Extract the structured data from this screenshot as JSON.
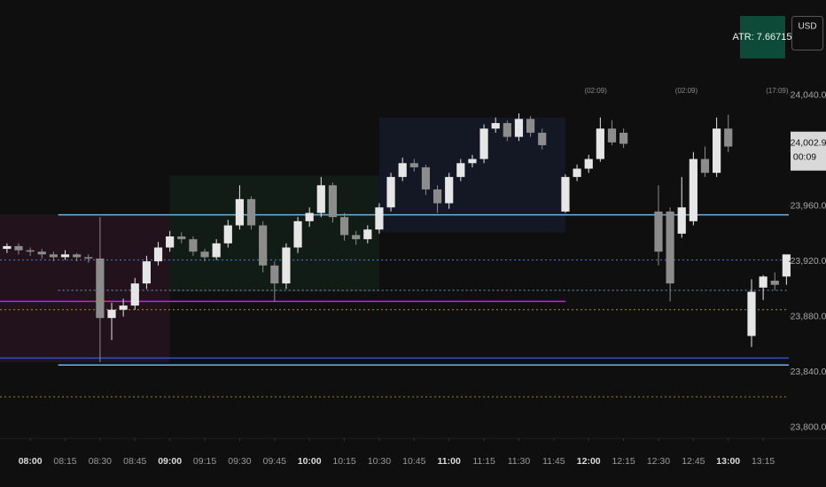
{
  "chart_data": {
    "type": "candlestick",
    "x": [
      "07:50",
      "07:55",
      "08:00",
      "08:05",
      "08:10",
      "08:15",
      "08:20",
      "08:25",
      "08:30",
      "08:35",
      "08:40",
      "08:45",
      "08:50",
      "08:55",
      "09:00",
      "09:05",
      "09:10",
      "09:15",
      "09:20",
      "09:25",
      "09:30",
      "09:35",
      "09:40",
      "09:45",
      "09:50",
      "09:55",
      "10:00",
      "10:05",
      "10:10",
      "10:15",
      "10:20",
      "10:25",
      "10:30",
      "10:35",
      "10:40",
      "10:45",
      "10:50",
      "10:55",
      "11:00",
      "11:05",
      "11:10",
      "11:15",
      "11:20",
      "11:25",
      "11:30",
      "11:35",
      "11:40",
      "11:50",
      "11:55",
      "12:00",
      "12:05",
      "12:10",
      "12:15",
      "12:30",
      "12:35",
      "12:40",
      "12:45",
      "12:50",
      "12:55",
      "13:00",
      "13:10",
      "13:15",
      "13:20",
      "13:25"
    ],
    "open": [
      23929,
      23931,
      23928,
      23927,
      23925,
      23923,
      23925,
      23923,
      23922,
      23879,
      23885,
      23888,
      23904,
      23920,
      23930,
      23938,
      23936,
      23927,
      23923,
      23933,
      23946,
      23965,
      23946,
      23917,
      23904,
      23930,
      23949,
      23955,
      23975,
      23952,
      23939,
      23936,
      23943,
      23959,
      23981,
      23991,
      23988,
      23972,
      23962,
      23981,
      23991,
      23994,
      24016,
      24020,
      24010,
      24023,
      24013,
      23956,
      23981,
      23987,
      23994,
      24016,
      24013,
      23956,
      23956,
      23940,
      23949,
      23994,
      23984,
      24016,
      23866,
      23901,
      23906,
      23909
    ],
    "high": [
      23933,
      23933,
      23930,
      23929,
      23927,
      23928,
      23926,
      23925,
      23952,
      23890,
      23893,
      23908,
      23924,
      23934,
      23942,
      23941,
      23938,
      23929,
      23936,
      23950,
      23975,
      23967,
      23949,
      23920,
      23933,
      23952,
      23959,
      23981,
      23977,
      23955,
      23942,
      23946,
      23962,
      23984,
      23995,
      23994,
      23990,
      23975,
      23984,
      23994,
      23997,
      24019,
      24024,
      24022,
      24027,
      24025,
      24016,
      23983,
      23990,
      23997,
      24024,
      24022,
      24016,
      23975,
      23959,
      23981,
      23999,
      24003,
      24024,
      24026,
      23907,
      23910,
      23912,
      23924
    ],
    "low": [
      23926,
      23925,
      23924,
      23922,
      23920,
      23921,
      23920,
      23919,
      23847,
      23863,
      23880,
      23885,
      23900,
      23917,
      23927,
      23933,
      23924,
      23920,
      23921,
      23930,
      23943,
      23943,
      23912,
      23891,
      23900,
      23926,
      23945,
      23952,
      23948,
      23935,
      23932,
      23933,
      23940,
      23956,
      23978,
      23985,
      23968,
      23955,
      23958,
      23978,
      23988,
      23991,
      24013,
      24007,
      24007,
      24010,
      24001,
      23955,
      23978,
      23984,
      23992,
      24004,
      24002,
      23917,
      23891,
      23937,
      23946,
      23981,
      23981,
      23999,
      23858,
      23892,
      23899,
      23903
    ],
    "close": [
      23931,
      23928,
      23927,
      23925,
      23923,
      23925,
      23923,
      23922,
      23879,
      23885,
      23888,
      23904,
      23920,
      23930,
      23938,
      23936,
      23927,
      23923,
      23933,
      23946,
      23965,
      23946,
      23917,
      23904,
      23930,
      23949,
      23955,
      23975,
      23952,
      23939,
      23936,
      23943,
      23959,
      23981,
      23991,
      23988,
      23972,
      23962,
      23981,
      23991,
      23994,
      24016,
      24020,
      24010,
      24023,
      24013,
      24004,
      23981,
      23987,
      23994,
      24016,
      24006,
      24005,
      23927,
      23904,
      23959,
      23994,
      23984,
      24016,
      24003,
      23898,
      23909,
      23903,
      23925
    ],
    "up_color": "#e6e6e6",
    "down_color": "#8c8c8c",
    "xlim": [
      "07:47",
      "13:26"
    ],
    "xticks": [
      "08:00",
      "08:15",
      "08:30",
      "08:45",
      "09:00",
      "09:15",
      "09:30",
      "09:45",
      "10:00",
      "10:15",
      "10:30",
      "10:45",
      "11:00",
      "11:15",
      "11:30",
      "11:45",
      "12:00",
      "12:15",
      "12:30",
      "12:45",
      "13:00",
      "13:15"
    ],
    "ylim": [
      23792,
      24109
    ],
    "yticks": [
      {
        "value": 23800,
        "label": "23,800.0"
      },
      {
        "value": 23840,
        "label": "23,840.0"
      },
      {
        "value": 23880,
        "label": "23,880.0"
      },
      {
        "value": 23920,
        "label": "23,920.0"
      },
      {
        "value": 23960,
        "label": "23,960.0"
      },
      {
        "value": 24000,
        "label": "24,000.0"
      },
      {
        "value": 24040,
        "label": "24,040.0"
      }
    ],
    "sessions": [
      {
        "start": "07:47",
        "end": "09:00",
        "low": 23847,
        "high": 23954,
        "color": "rgba(130,40,100,0.16)"
      },
      {
        "start": "09:00",
        "end": "10:30",
        "low": 23898,
        "high": 23982,
        "color": "rgba(40,110,80,0.14)"
      },
      {
        "start": "10:30",
        "end": "11:50",
        "low": 23941,
        "high": 24024,
        "color": "rgba(50,70,150,0.16)"
      }
    ],
    "levels": [
      {
        "value": 23953.6,
        "color": "#64b5f0",
        "style": "solid",
        "start": "08:12"
      },
      {
        "value": 23921,
        "color": "#4a7fd8",
        "style": "dotted"
      },
      {
        "value": 23899,
        "color": "#7f95b5",
        "style": "dotted",
        "start": "08:12"
      },
      {
        "value": 23891,
        "color": "#d21fd2",
        "style": "solid",
        "end": "11:50"
      },
      {
        "value": 23885,
        "color": "#b08f2c",
        "style": "dotted"
      },
      {
        "value": 23850,
        "color": "#3050d0",
        "style": "solid"
      },
      {
        "value": 23845,
        "color": "#64b5f0",
        "style": "solid",
        "start": "08:12"
      },
      {
        "value": 23822,
        "color": "#a08a20",
        "style": "dotted"
      }
    ],
    "time_markers": [
      {
        "x": "12:03",
        "label": "(02:09)"
      },
      {
        "x": "12:42",
        "label": "(02:09)"
      },
      {
        "x": "13:21",
        "label": "(17:09)"
      }
    ],
    "indicator": "ATR: 7.66715",
    "currency": "USD",
    "last_price": {
      "value": 24002.9,
      "label": "24,002.9"
    },
    "countdown": "00:09"
  }
}
